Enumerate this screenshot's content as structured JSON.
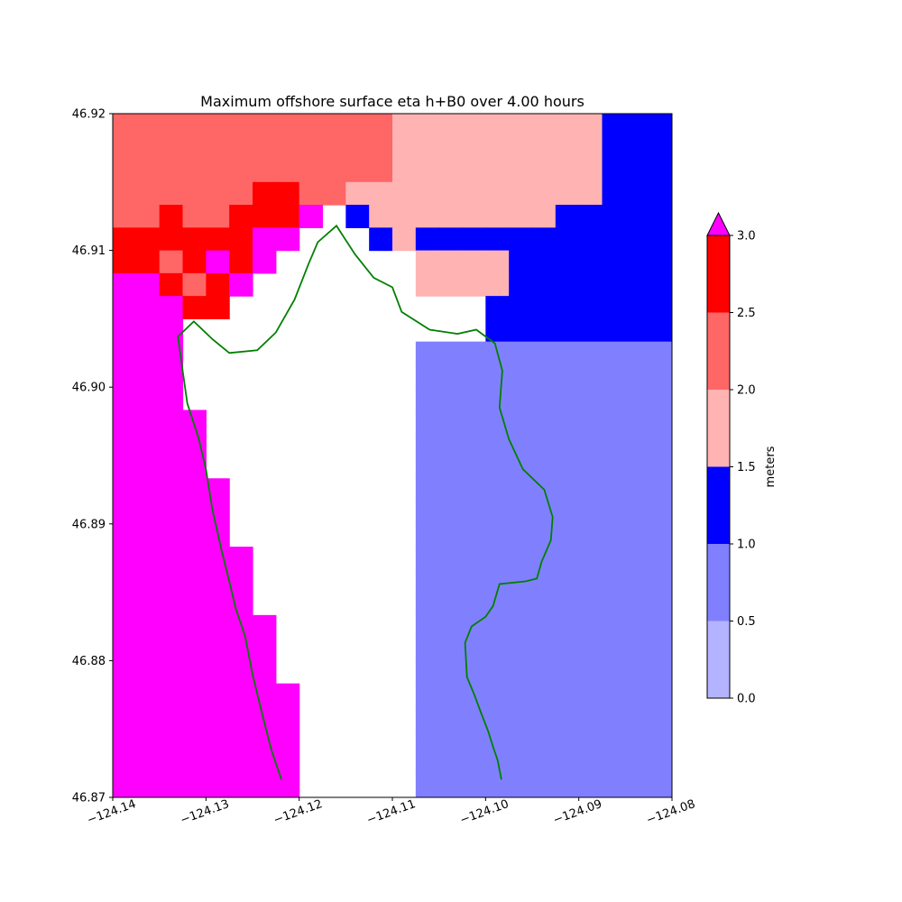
{
  "chart_data": {
    "type": "heatmap",
    "title": "Maximum offshore surface eta h+B0 over 4.00 hours",
    "xlim": [
      -124.14,
      -124.08
    ],
    "ylim": [
      46.87,
      46.92
    ],
    "x_ticks": [
      "−124.14",
      "−124.13",
      "−124.12",
      "−124.11",
      "−124.10",
      "−124.09",
      "−124.08"
    ],
    "x_tick_values": [
      -124.14,
      -124.13,
      -124.12,
      -124.11,
      -124.1,
      -124.09,
      -124.08
    ],
    "y_ticks": [
      "46.87",
      "46.88",
      "46.89",
      "46.90",
      "46.91",
      "46.92"
    ],
    "y_tick_values": [
      46.87,
      46.88,
      46.89,
      46.9,
      46.91,
      46.92
    ],
    "colorbar": {
      "label": "meters",
      "levels": [
        0.0,
        0.5,
        1.0,
        1.5,
        2.0,
        2.5,
        3.0
      ],
      "tick_labels": [
        "0.0",
        "0.5",
        "1.0",
        "1.5",
        "2.0",
        "2.5",
        "3.0"
      ],
      "colors": [
        "#b3b3ff",
        "#8080ff",
        "#0000ff",
        "#ffb3b3",
        "#ff6666",
        "#ff0000"
      ],
      "over_color": "#ff00ff",
      "extend": "max"
    },
    "grid_cell_spacing_degrees": 0.0025,
    "value_bins": {
      "M": "> 3.0",
      "R": "2.5 - 3.0",
      "S": "2.0 - 2.5",
      "P": "1.5 - 2.0",
      "B": "1.0 - 1.5",
      "L": "0.5 - 1.0",
      "V": "0.0 - 0.5",
      ".": "dry (no value)"
    },
    "grid_rows_north_to_south": [
      "SSSSSSSSSSSSPPPPPPPPPBBB",
      "SSSSSSSSSSSSPPPPPPPPPBBB",
      "SSSSSSSSSSSSPPPPPPPPPBBB",
      "SSSSSSRRSSPPPPPPPPPPPBBB",
      "SSRSSRRRM.BPPPPPPPPBBBBB",
      "RRRRRRMM...BPBBBBBBBBBBB",
      "RRSRMRM......PPPPBBBBBBB",
      "MMRSRM.......PPPPBBBBBBB",
      "MMMRR...........BBBBBBBB",
      "MMM.............BBBBBBBB",
      "MMM..........LLLLLLLLLLL",
      "MMM..........LLLLLLLLLLL",
      "MMM..........LLLLLLLLLLL",
      "MMMM.........LLLLLLLLLLL",
      "MMMM.........LLLLLLLLLLL",
      "MMMM.........LLLLLLLLLLL",
      "MMMMM........LLLLLLLLLLL",
      "MMMMM........LLLLLLLLLLL",
      "MMMMM........LLLLLLLLLLL",
      "MMMMMM.......LLLLLLLLLLL",
      "MMMMMM.......LLLLLLLLLLL",
      "MMMMMM.......LLLLLLLLLLL",
      "MMMMMMM......LLLLLLLLLLL",
      "MMMMMMM......LLLLLLLLLLL",
      "MMMMMMM......LLLLLLLLLLL",
      "MMMMMMMM.....LLLLLLLLLLL",
      "MMMMMMMM.....LLLLLLLLLLL",
      "MMMMMMMM.....LLLLLLLLLLL",
      "MMMMMMMM.....LLLLLLLLLLL",
      "MMMMMMMM.....LLLLLLLLLLL"
    ],
    "shoreline": {
      "color": "#008000",
      "points": [
        [
          -124.1219,
          46.8713
        ],
        [
          -124.123,
          46.8735
        ],
        [
          -124.124,
          46.8762
        ],
        [
          -124.125,
          46.879
        ],
        [
          -124.1258,
          46.8818
        ],
        [
          -124.1268,
          46.8838
        ],
        [
          -124.1275,
          46.8858
        ],
        [
          -124.1283,
          46.888
        ],
        [
          -124.1293,
          46.891
        ],
        [
          -124.13,
          46.894
        ],
        [
          -124.1308,
          46.8963
        ],
        [
          -124.132,
          46.8988
        ],
        [
          -124.1325,
          46.9012
        ],
        [
          -124.133,
          46.9037
        ],
        [
          -124.1313,
          46.9048
        ],
        [
          -124.1293,
          46.9035
        ],
        [
          -124.1275,
          46.9025
        ],
        [
          -124.1245,
          46.9027
        ],
        [
          -124.1225,
          46.904
        ],
        [
          -124.1205,
          46.9064
        ],
        [
          -124.119,
          46.909
        ],
        [
          -124.118,
          46.9106
        ],
        [
          -124.116,
          46.9118
        ],
        [
          -124.114,
          46.9097
        ],
        [
          -124.112,
          46.908
        ],
        [
          -124.11,
          46.9073
        ],
        [
          -124.109,
          46.9055
        ],
        [
          -124.106,
          46.9042
        ],
        [
          -124.103,
          46.9039
        ],
        [
          -124.101,
          46.9042
        ],
        [
          -124.099,
          46.9032
        ],
        [
          -124.0982,
          46.9012
        ],
        [
          -124.0985,
          46.8985
        ],
        [
          -124.0975,
          46.8962
        ],
        [
          -124.096,
          46.894
        ],
        [
          -124.0937,
          46.8925
        ],
        [
          -124.0928,
          46.8905
        ],
        [
          -124.093,
          46.8888
        ],
        [
          -124.094,
          46.8872
        ],
        [
          -124.0945,
          46.886
        ],
        [
          -124.0957,
          46.8858
        ],
        [
          -124.0985,
          46.8856
        ],
        [
          -124.0992,
          46.884
        ],
        [
          -124.1,
          46.8832
        ],
        [
          -124.1015,
          46.8825
        ],
        [
          -124.1022,
          46.8813
        ],
        [
          -124.102,
          46.8788
        ],
        [
          -124.1012,
          46.8775
        ],
        [
          -124.1005,
          46.8762
        ],
        [
          -124.0997,
          46.8748
        ],
        [
          -124.0992,
          46.8737
        ],
        [
          -124.0987,
          46.8727
        ],
        [
          -124.0983,
          46.8713
        ]
      ]
    }
  }
}
